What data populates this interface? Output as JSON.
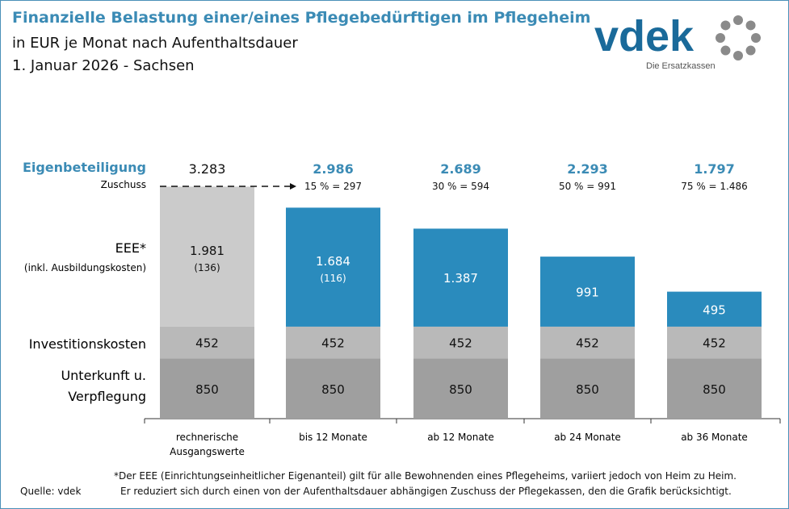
{
  "title": "Finanzielle Belastung einer/eines Pflegebedürftigen im Pflegeheim",
  "subtitle": "in EUR je Monat nach Aufenthaltsdauer",
  "date_region": "1. Januar 2026 - Sachsen",
  "logo": {
    "text": "vdek",
    "tagline": "Die Ersatzkassen"
  },
  "colors": {
    "eee_base": "#cbcbcb",
    "eee": "#2a8bbd",
    "invest": "#b9b9b9",
    "unterkunft": "#9f9f9f",
    "accent": "#3b8bb5"
  },
  "chart_data": {
    "type": "stacked-bar",
    "categories": [
      "rechnerische Ausgangswerte",
      "bis 12 Monate",
      "ab 12 Monate",
      "ab 24 Monate",
      "ab 36 Monate"
    ],
    "row_labels": {
      "eigen": "Eigenbeteiligung",
      "zuschuss": "Zuschuss",
      "eee": "EEE*",
      "eee_sub": "(inkl. Ausbildungskosten)",
      "invest": "Investitionskosten",
      "unterkunft1": "Unterkunft u.",
      "unterkunft2": "Verpflegung"
    },
    "series": [
      {
        "name": "Unterkunft u. Verpflegung",
        "values": [
          850,
          850,
          850,
          850,
          850
        ],
        "labels": [
          "850",
          "850",
          "850",
          "850",
          "850"
        ]
      },
      {
        "name": "Investitionskosten",
        "values": [
          452,
          452,
          452,
          452,
          452
        ],
        "labels": [
          "452",
          "452",
          "452",
          "452",
          "452"
        ]
      },
      {
        "name": "EEE*",
        "values": [
          1981,
          1684,
          1387,
          991,
          495
        ],
        "labels": [
          "1.981",
          "1.684",
          "1.387",
          "991",
          "495"
        ],
        "sublabels": [
          "(136)",
          "(116)",
          "",
          "",
          ""
        ]
      }
    ],
    "eigenbeteiligung": [
      "3.283",
      "2.986",
      "2.689",
      "2.293",
      "1.797"
    ],
    "zuschuss": [
      "",
      "15 % = 297",
      "30 % = 594",
      "50 % = 991",
      "75 % = 1.486"
    ]
  },
  "footnote1": "*Der EEE (Einrichtungseinheitlicher Eigenanteil) gilt für alle Bewohnenden eines Pflegeheims, variiert jedoch von Heim zu Heim.",
  "footnote2": "Er reduziert sich durch einen von der Aufenthaltsdauer abhängigen Zuschuss der Pflegekassen, den die Grafik berücksichtigt.",
  "source": "Quelle: vdek"
}
